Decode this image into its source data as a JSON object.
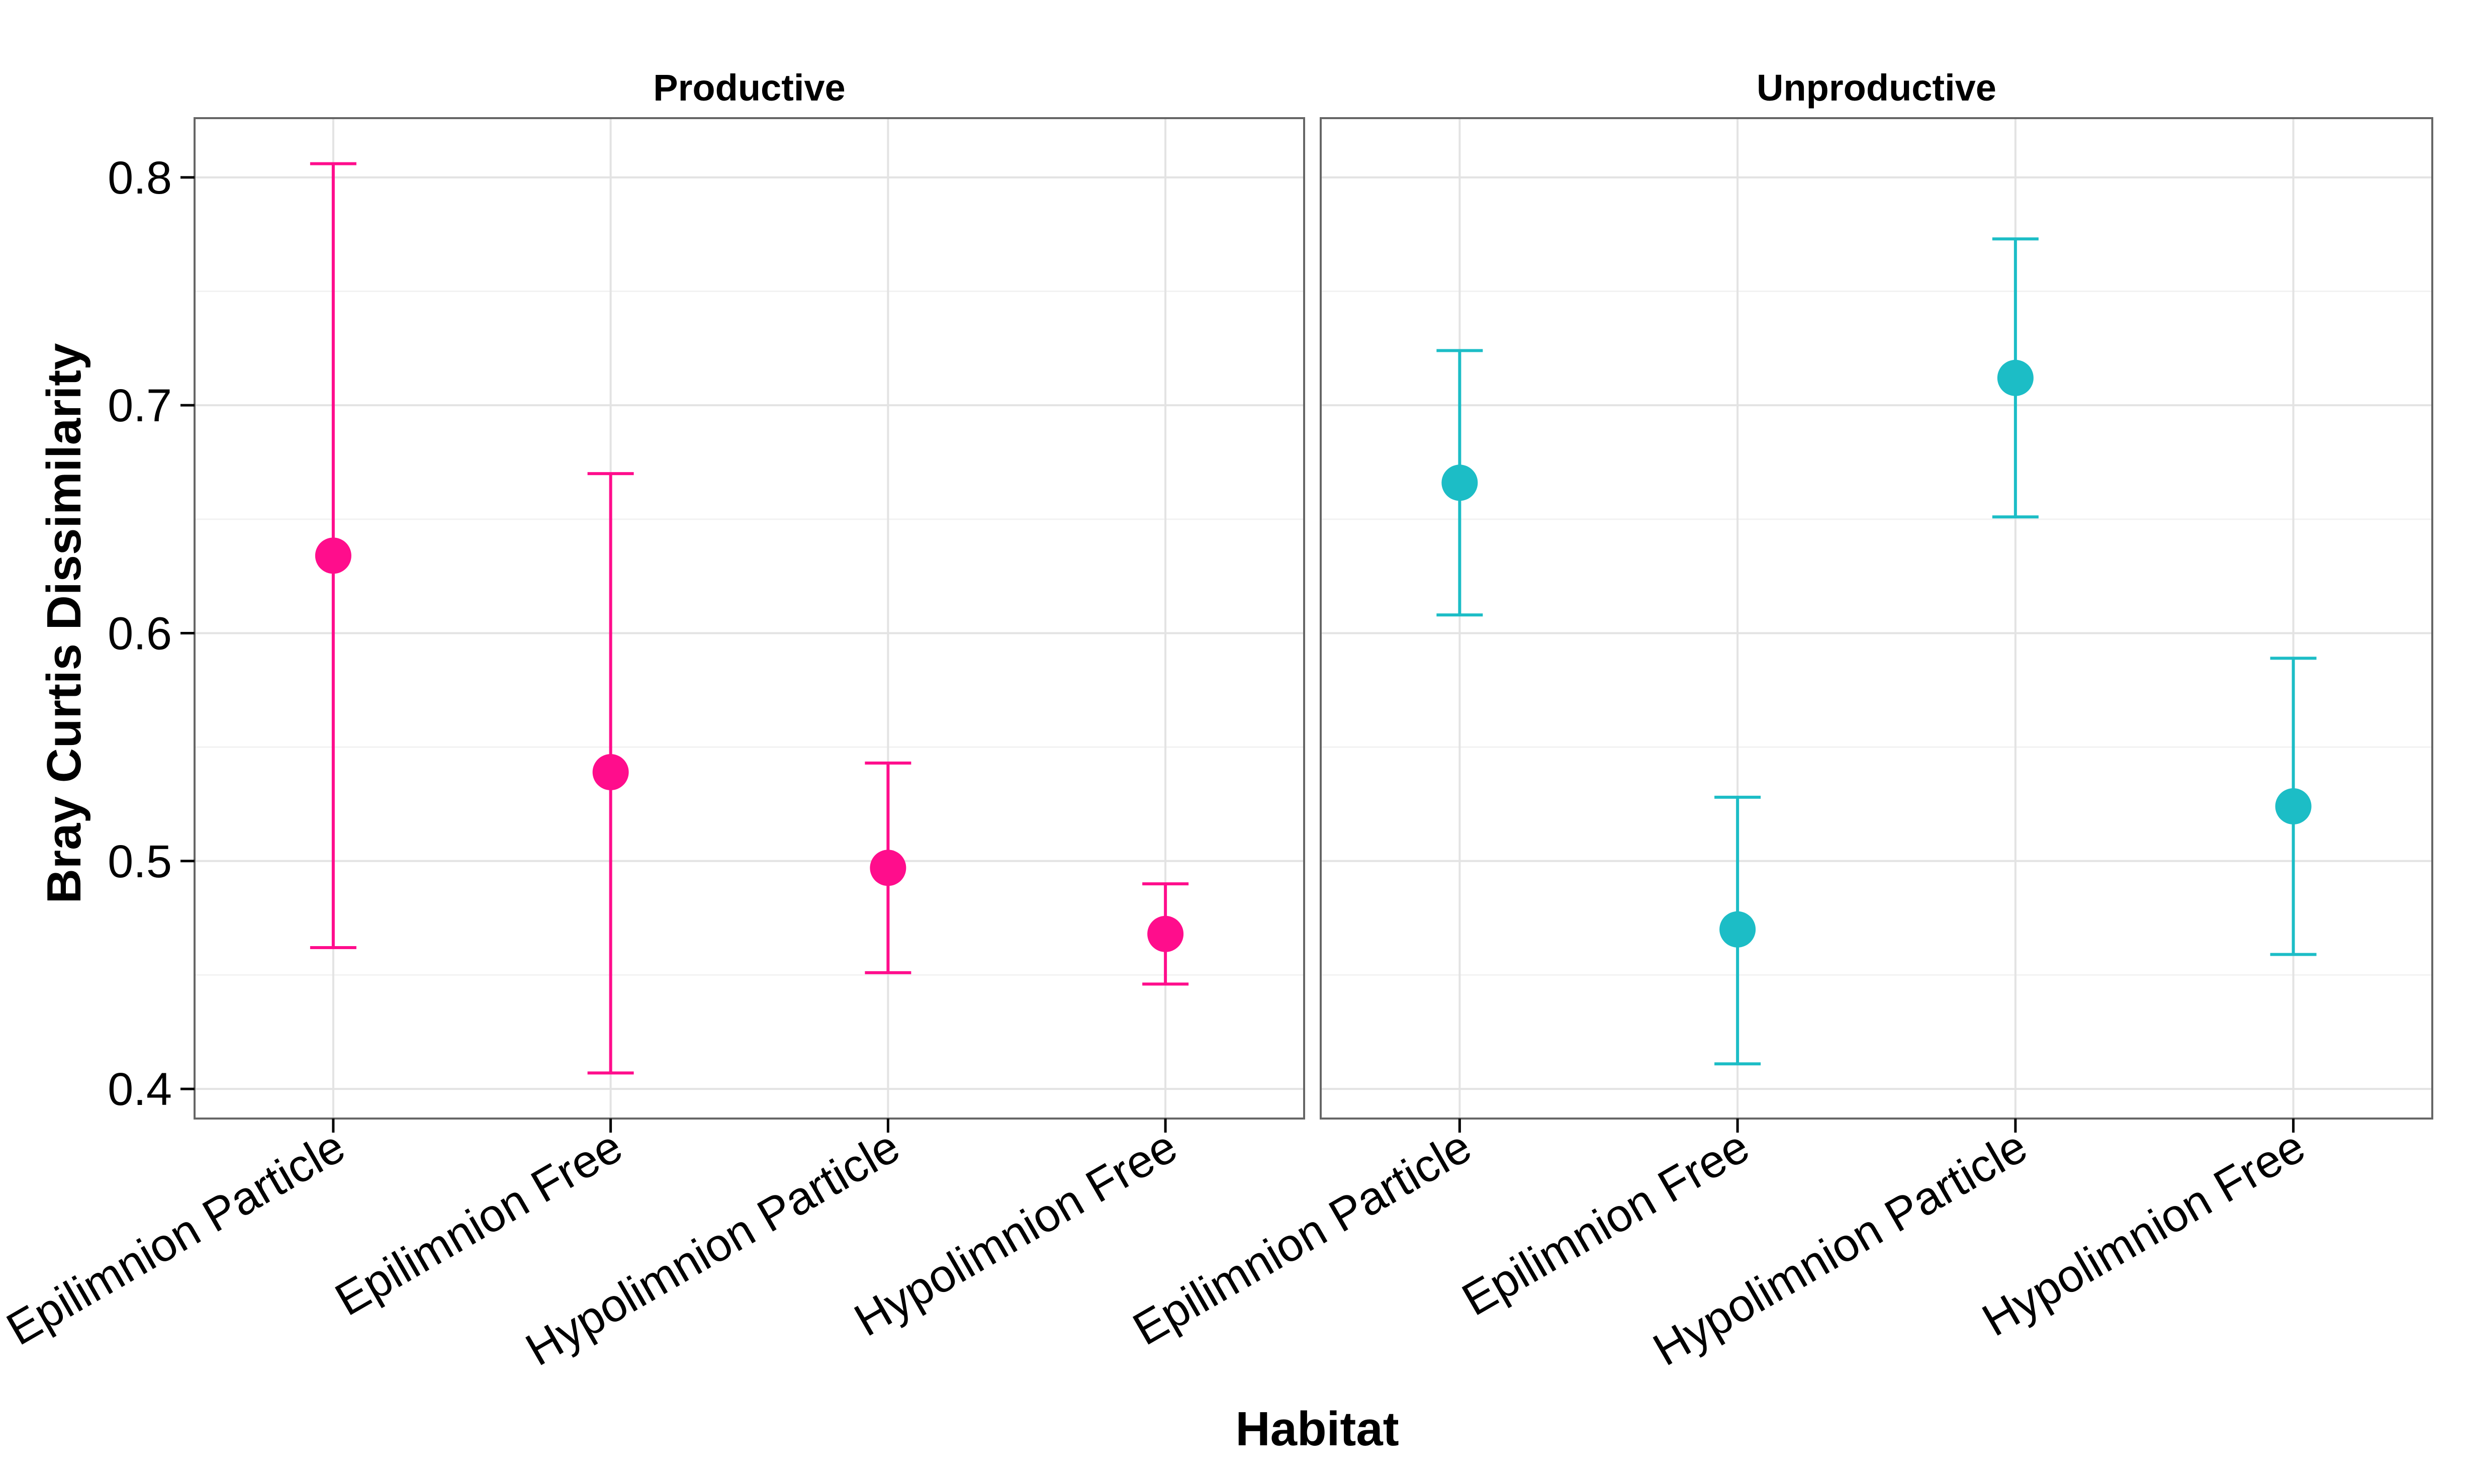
{
  "chart_data": {
    "type": "scatter",
    "subtype": "point-with-errorbars",
    "xlabel": "Habitat",
    "ylabel": "Bray Curtis Dissimilarity",
    "ylim": [
      0.387,
      0.826
    ],
    "y_ticks": [
      "0.4",
      "0.5",
      "0.6",
      "0.7",
      "0.8"
    ],
    "y_tick_values": [
      0.4,
      0.5,
      0.6,
      0.7,
      0.8
    ],
    "grid": true,
    "legend": "none",
    "categories": [
      "Epilimnion Particle",
      "Epilimnion Free",
      "Hypolimnion Particle",
      "Hypolimnion Free"
    ],
    "panels": [
      {
        "title": "Productive",
        "color": "#FF0D8C",
        "points": [
          {
            "category": "Epilimnion Particle",
            "y": 0.634,
            "ymin": 0.462,
            "ymax": 0.806
          },
          {
            "category": "Epilimnion Free",
            "y": 0.539,
            "ymin": 0.407,
            "ymax": 0.67
          },
          {
            "category": "Hypolimnion Particle",
            "y": 0.497,
            "ymin": 0.451,
            "ymax": 0.543
          },
          {
            "category": "Hypolimnion Free",
            "y": 0.468,
            "ymin": 0.446,
            "ymax": 0.49
          }
        ]
      },
      {
        "title": "Unproductive",
        "color": "#1CBDC6",
        "points": [
          {
            "category": "Epilimnion Particle",
            "y": 0.666,
            "ymin": 0.608,
            "ymax": 0.724
          },
          {
            "category": "Epilimnion Free",
            "y": 0.47,
            "ymin": 0.411,
            "ymax": 0.528
          },
          {
            "category": "Hypolimnion Particle",
            "y": 0.712,
            "ymin": 0.651,
            "ymax": 0.773
          },
          {
            "category": "Hypolimnion Free",
            "y": 0.524,
            "ymin": 0.459,
            "ymax": 0.589
          }
        ]
      }
    ]
  }
}
